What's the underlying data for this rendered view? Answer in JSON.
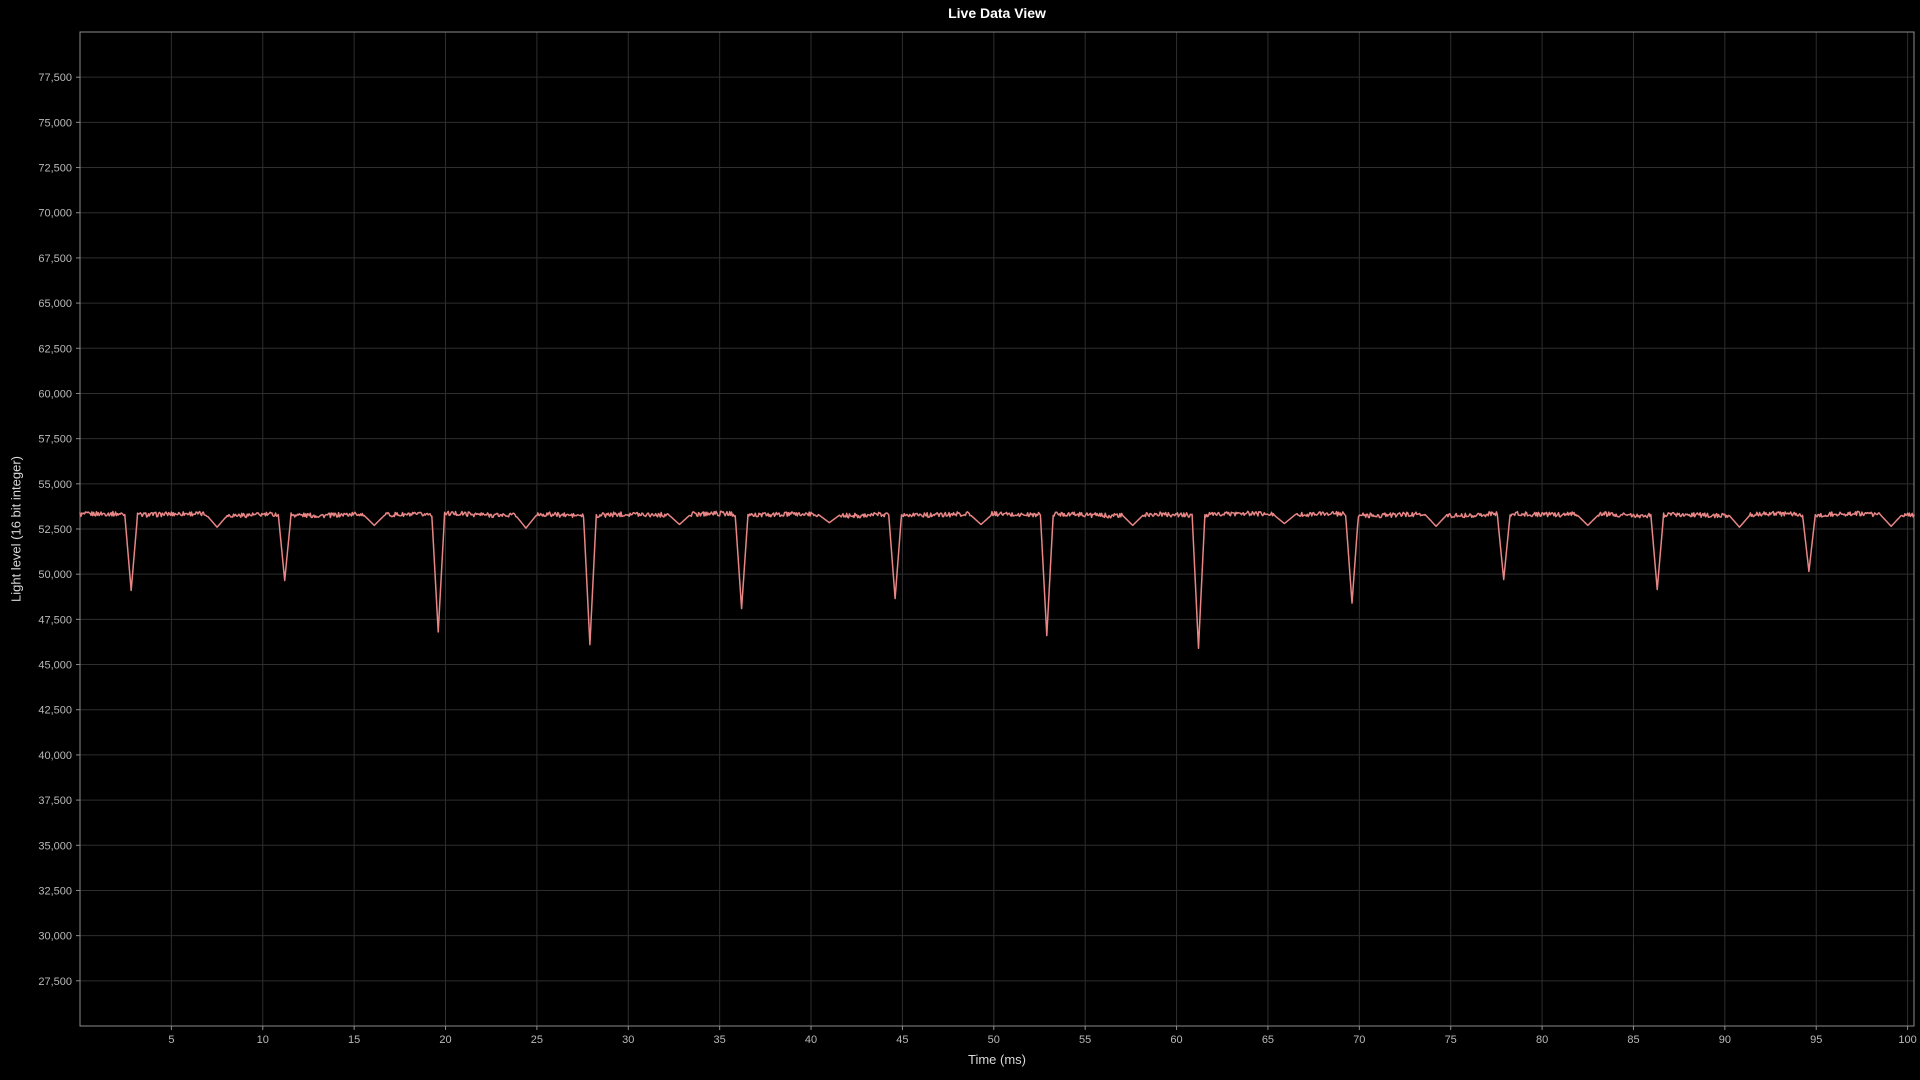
{
  "page": {
    "background": "#000000"
  },
  "chart_data": {
    "type": "line",
    "title": "Live Data View",
    "xlabel": "Time (ms)",
    "ylabel": "Light level (16 bit integer)",
    "x_range": [
      0,
      100.35
    ],
    "y_range": [
      25000,
      80000
    ],
    "x_ticks": [
      5,
      10,
      15,
      20,
      25,
      30,
      35,
      40,
      45,
      50,
      55,
      60,
      65,
      70,
      75,
      80,
      85,
      90,
      95,
      100
    ],
    "x_tick_labels": [
      "5",
      "10",
      "15",
      "20",
      "25",
      "30",
      "35",
      "40",
      "45",
      "50",
      "55",
      "60",
      "65",
      "70",
      "75",
      "80",
      "85",
      "90",
      "95",
      "100"
    ],
    "y_ticks": [
      27500,
      30000,
      32500,
      35000,
      37500,
      40000,
      42500,
      45000,
      47500,
      50000,
      52500,
      55000,
      57500,
      60000,
      62500,
      65000,
      67500,
      70000,
      72500,
      75000,
      77500
    ],
    "y_tick_labels": [
      "27,500",
      "30,000",
      "32,500",
      "35,000",
      "37,500",
      "40,000",
      "42,500",
      "45,000",
      "47,500",
      "50,000",
      "52,500",
      "55,000",
      "57,500",
      "60,000",
      "62,500",
      "65,000",
      "67,500",
      "70,000",
      "72,500",
      "75,000",
      "77,500"
    ],
    "grid": true,
    "legend": "none",
    "colors": {
      "line": "#e88585",
      "grid": "#2e2e2e",
      "axis": "#8c8c8c",
      "tick_text": "#b9b9b9",
      "title_text": "#ffffff",
      "label_text": "#d9d9d9",
      "background": "#000000"
    },
    "series": [
      {
        "name": "Light level",
        "baseline": 53300,
        "noise_amplitude": 130,
        "sample_step_ms": 0.05,
        "major_dip_halfwidth_ms": 0.35,
        "minor_dip_halfwidth_ms": 0.6,
        "major_dips": [
          {
            "x": 2.8,
            "min": 49100
          },
          {
            "x": 11.2,
            "min": 49650
          },
          {
            "x": 19.6,
            "min": 46800
          },
          {
            "x": 27.9,
            "min": 46100
          },
          {
            "x": 36.2,
            "min": 48100
          },
          {
            "x": 44.6,
            "min": 48650
          },
          {
            "x": 52.9,
            "min": 46600
          },
          {
            "x": 61.2,
            "min": 45900
          },
          {
            "x": 69.6,
            "min": 48400
          },
          {
            "x": 77.9,
            "min": 49700
          },
          {
            "x": 86.3,
            "min": 49150
          },
          {
            "x": 94.6,
            "min": 50150
          }
        ],
        "minor_dips": [
          {
            "x": 7.5,
            "min": 52600
          },
          {
            "x": 16.1,
            "min": 52700
          },
          {
            "x": 24.4,
            "min": 52550
          },
          {
            "x": 32.8,
            "min": 52750
          },
          {
            "x": 41.0,
            "min": 52850
          },
          {
            "x": 49.3,
            "min": 52750
          },
          {
            "x": 57.6,
            "min": 52700
          },
          {
            "x": 65.9,
            "min": 52800
          },
          {
            "x": 74.2,
            "min": 52650
          },
          {
            "x": 82.5,
            "min": 52700
          },
          {
            "x": 90.8,
            "min": 52600
          },
          {
            "x": 99.1,
            "min": 52650
          }
        ]
      }
    ]
  }
}
